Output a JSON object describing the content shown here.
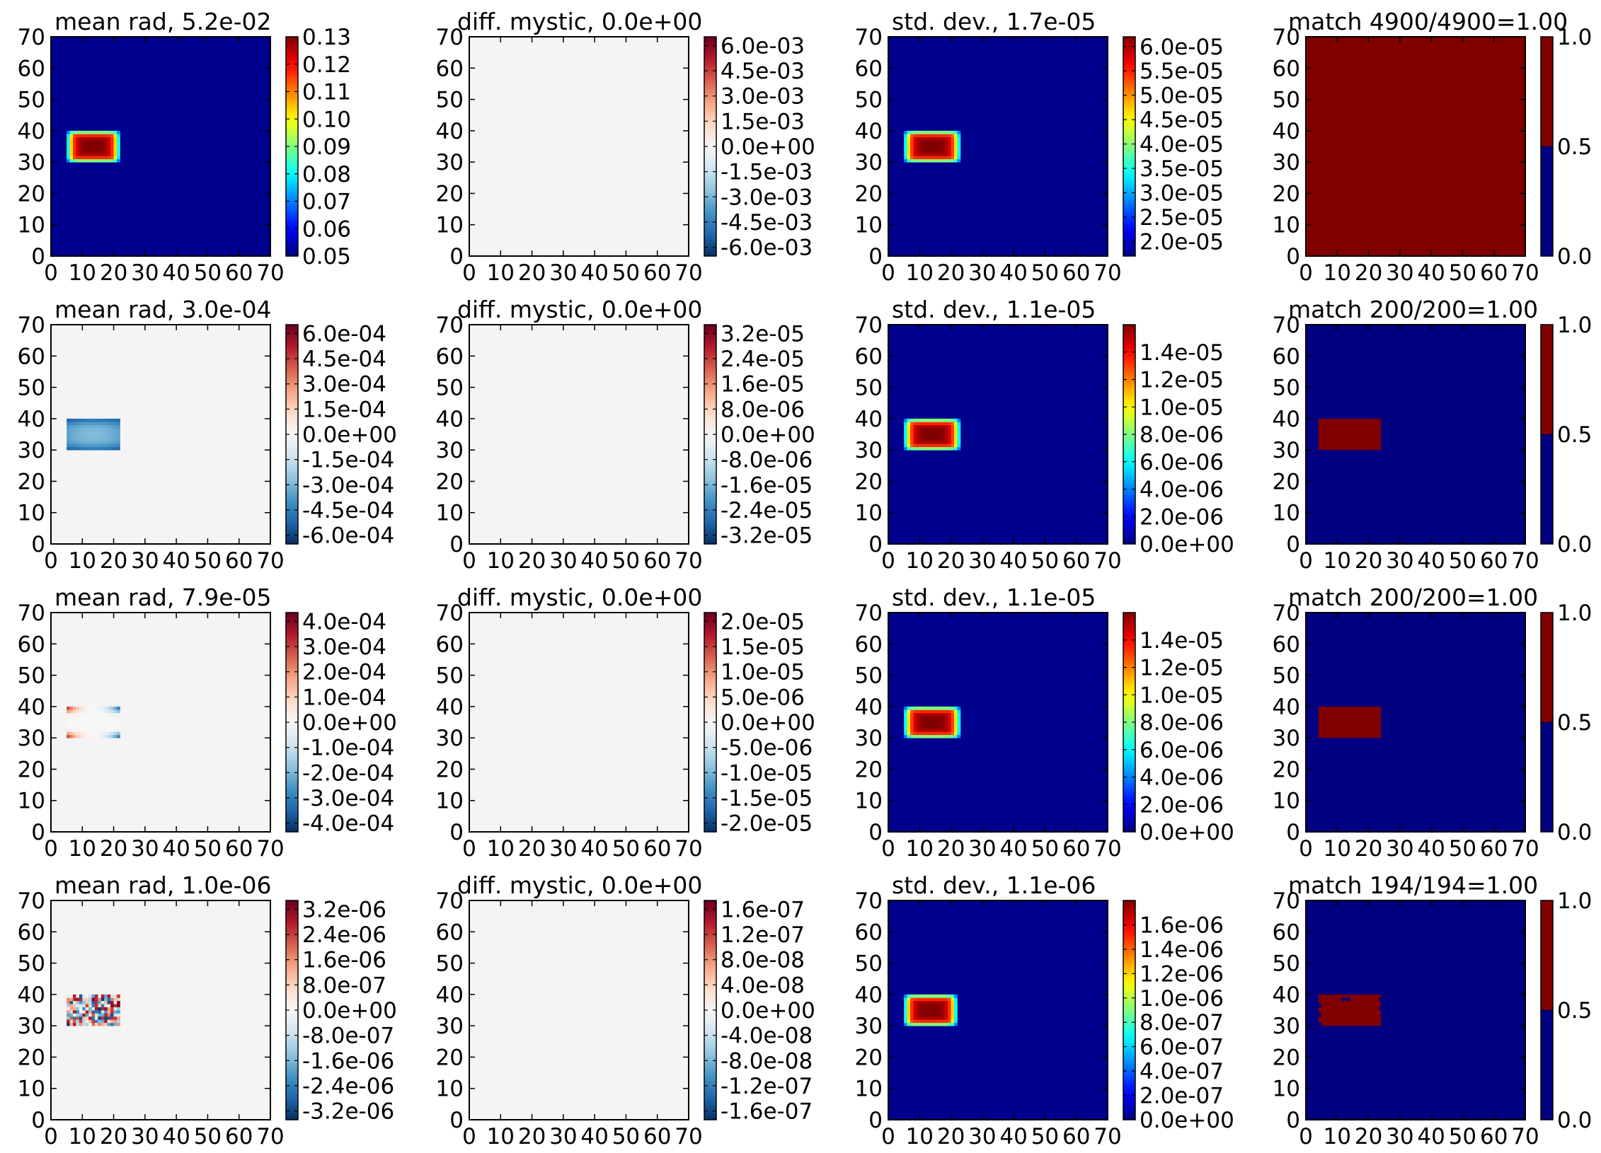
{
  "figure": {
    "grid": "4x4",
    "background": "#ffffff",
    "panel_background_uniform": "#f4f4f4",
    "jet_low_color": "#00008f",
    "match_true_color": "#800000",
    "match_false_color": "#000080"
  },
  "chart_data": [
    {
      "type": "heatmap",
      "title": "mean rad, 5.2e-02",
      "cmap": "jet",
      "xlim": [
        0,
        70
      ],
      "ylim": [
        0,
        70
      ],
      "xticks": [
        "0",
        "10",
        "20",
        "30",
        "40",
        "50",
        "60",
        "70"
      ],
      "yticks": [
        "0",
        "10",
        "20",
        "30",
        "40",
        "50",
        "60",
        "70"
      ],
      "colorbar": {
        "ticks": [
          "0.13",
          "0.12",
          "0.11",
          "0.10",
          "0.09",
          "0.08",
          "0.07",
          "0.06",
          "0.05"
        ],
        "vmin": 0.05,
        "vmax": 0.13
      },
      "field": {
        "kind": "hot_rect",
        "region_x": [
          5,
          22
        ],
        "region_y": [
          30,
          40
        ],
        "background": 0.05,
        "peak": 0.13
      }
    },
    {
      "type": "heatmap",
      "title": "diff. mystic, 0.0e+00",
      "cmap": "RdBu_r",
      "xlim": [
        0,
        70
      ],
      "ylim": [
        0,
        70
      ],
      "xticks": [
        "0",
        "10",
        "20",
        "30",
        "40",
        "50",
        "60",
        "70"
      ],
      "yticks": [
        "0",
        "10",
        "20",
        "30",
        "40",
        "50",
        "60",
        "70"
      ],
      "colorbar": {
        "ticks": [
          "6.0e-03",
          "4.5e-03",
          "3.0e-03",
          "1.5e-03",
          "0.0e+00",
          "-1.5e-03",
          "-3.0e-03",
          "-4.5e-03",
          "-6.0e-03"
        ]
      },
      "field": {
        "kind": "uniform"
      }
    },
    {
      "type": "heatmap",
      "title": "std. dev., 1.7e-05",
      "cmap": "jet",
      "xlim": [
        0,
        70
      ],
      "ylim": [
        0,
        70
      ],
      "xticks": [
        "0",
        "10",
        "20",
        "30",
        "40",
        "50",
        "60",
        "70"
      ],
      "yticks": [
        "0",
        "10",
        "20",
        "30",
        "40",
        "50",
        "60",
        "70"
      ],
      "colorbar": {
        "ticks": [
          "6.0e-05",
          "5.5e-05",
          "5.0e-05",
          "4.5e-05",
          "4.0e-05",
          "3.5e-05",
          "3.0e-05",
          "2.5e-05",
          "2.0e-05"
        ],
        "vmin": 1.7e-05,
        "vmax": 6.2e-05
      },
      "field": {
        "kind": "hot_rect",
        "region_x": [
          5,
          23
        ],
        "region_y": [
          30,
          40
        ]
      }
    },
    {
      "type": "heatmap",
      "title": "match 4900/4900=1.00",
      "cmap": "binary_jet",
      "xlim": [
        0,
        70
      ],
      "ylim": [
        0,
        70
      ],
      "xticks": [
        "0",
        "10",
        "20",
        "30",
        "40",
        "50",
        "60",
        "70"
      ],
      "yticks": [
        "0",
        "10",
        "20",
        "30",
        "40",
        "50",
        "60",
        "70"
      ],
      "colorbar": {
        "ticks": [
          "1.0",
          "0.5",
          "0.0"
        ]
      },
      "field": {
        "kind": "match_full"
      }
    },
    {
      "type": "heatmap",
      "title": "mean rad, 3.0e-04",
      "cmap": "RdBu_r",
      "xlim": [
        0,
        70
      ],
      "ylim": [
        0,
        70
      ],
      "xticks": [
        "0",
        "10",
        "20",
        "30",
        "40",
        "50",
        "60",
        "70"
      ],
      "yticks": [
        "0",
        "10",
        "20",
        "30",
        "40",
        "50",
        "60",
        "70"
      ],
      "colorbar": {
        "ticks": [
          "6.0e-04",
          "4.5e-04",
          "3.0e-04",
          "1.5e-04",
          "0.0e+00",
          "-1.5e-04",
          "-3.0e-04",
          "-4.5e-04",
          "-6.0e-04"
        ]
      },
      "field": {
        "kind": "blue_rect",
        "region_x": [
          5,
          22
        ],
        "region_y": [
          30,
          40
        ]
      }
    },
    {
      "type": "heatmap",
      "title": "diff. mystic, 0.0e+00",
      "cmap": "RdBu_r",
      "xlim": [
        0,
        70
      ],
      "ylim": [
        0,
        70
      ],
      "xticks": [
        "0",
        "10",
        "20",
        "30",
        "40",
        "50",
        "60",
        "70"
      ],
      "yticks": [
        "0",
        "10",
        "20",
        "30",
        "40",
        "50",
        "60",
        "70"
      ],
      "colorbar": {
        "ticks": [
          "3.2e-05",
          "2.4e-05",
          "1.6e-05",
          "8.0e-06",
          "0.0e+00",
          "-8.0e-06",
          "-1.6e-05",
          "-2.4e-05",
          "-3.2e-05"
        ]
      },
      "field": {
        "kind": "uniform"
      }
    },
    {
      "type": "heatmap",
      "title": "std. dev., 1.1e-05",
      "cmap": "jet",
      "xlim": [
        0,
        70
      ],
      "ylim": [
        0,
        70
      ],
      "xticks": [
        "0",
        "10",
        "20",
        "30",
        "40",
        "50",
        "60",
        "70"
      ],
      "yticks": [
        "0",
        "10",
        "20",
        "30",
        "40",
        "50",
        "60",
        "70"
      ],
      "colorbar": {
        "ticks": [
          "1.4e-05",
          "1.2e-05",
          "1.0e-05",
          "8.0e-06",
          "6.0e-06",
          "4.0e-06",
          "2.0e-06",
          "0.0e+00"
        ],
        "vmin": 0,
        "vmax": 1.6e-05
      },
      "field": {
        "kind": "hot_rect",
        "region_x": [
          5,
          23
        ],
        "region_y": [
          30,
          40
        ]
      }
    },
    {
      "type": "heatmap",
      "title": "match 200/200=1.00",
      "cmap": "binary_jet",
      "xlim": [
        0,
        70
      ],
      "ylim": [
        0,
        70
      ],
      "xticks": [
        "0",
        "10",
        "20",
        "30",
        "40",
        "50",
        "60",
        "70"
      ],
      "yticks": [
        "0",
        "10",
        "20",
        "30",
        "40",
        "50",
        "60",
        "70"
      ],
      "colorbar": {
        "ticks": [
          "1.0",
          "0.5",
          "0.0"
        ]
      },
      "field": {
        "kind": "match_rect",
        "region_x": [
          4,
          24
        ],
        "region_y": [
          30,
          40
        ]
      }
    },
    {
      "type": "heatmap",
      "title": "mean rad, 7.9e-05",
      "cmap": "RdBu_r",
      "xlim": [
        0,
        70
      ],
      "ylim": [
        0,
        70
      ],
      "xticks": [
        "0",
        "10",
        "20",
        "30",
        "40",
        "50",
        "60",
        "70"
      ],
      "yticks": [
        "0",
        "10",
        "20",
        "30",
        "40",
        "50",
        "60",
        "70"
      ],
      "colorbar": {
        "ticks": [
          "4.0e-04",
          "3.0e-04",
          "2.0e-04",
          "1.0e-04",
          "0.0e+00",
          "-1.0e-04",
          "-2.0e-04",
          "-3.0e-04",
          "-4.0e-04"
        ]
      },
      "field": {
        "kind": "x_pattern",
        "region_x": [
          5,
          22
        ],
        "region_y": [
          30,
          40
        ]
      }
    },
    {
      "type": "heatmap",
      "title": "diff. mystic, 0.0e+00",
      "cmap": "RdBu_r",
      "xlim": [
        0,
        70
      ],
      "ylim": [
        0,
        70
      ],
      "xticks": [
        "0",
        "10",
        "20",
        "30",
        "40",
        "50",
        "60",
        "70"
      ],
      "yticks": [
        "0",
        "10",
        "20",
        "30",
        "40",
        "50",
        "60",
        "70"
      ],
      "colorbar": {
        "ticks": [
          "2.0e-05",
          "1.5e-05",
          "1.0e-05",
          "5.0e-06",
          "0.0e+00",
          "-5.0e-06",
          "-1.0e-05",
          "-1.5e-05",
          "-2.0e-05"
        ]
      },
      "field": {
        "kind": "uniform"
      }
    },
    {
      "type": "heatmap",
      "title": "std. dev., 1.1e-05",
      "cmap": "jet",
      "xlim": [
        0,
        70
      ],
      "ylim": [
        0,
        70
      ],
      "xticks": [
        "0",
        "10",
        "20",
        "30",
        "40",
        "50",
        "60",
        "70"
      ],
      "yticks": [
        "0",
        "10",
        "20",
        "30",
        "40",
        "50",
        "60",
        "70"
      ],
      "colorbar": {
        "ticks": [
          "1.4e-05",
          "1.2e-05",
          "1.0e-05",
          "8.0e-06",
          "6.0e-06",
          "4.0e-06",
          "2.0e-06",
          "0.0e+00"
        ],
        "vmin": 0,
        "vmax": 1.6e-05
      },
      "field": {
        "kind": "hot_rect",
        "region_x": [
          5,
          23
        ],
        "region_y": [
          30,
          40
        ]
      }
    },
    {
      "type": "heatmap",
      "title": "match 200/200=1.00",
      "cmap": "binary_jet",
      "xlim": [
        0,
        70
      ],
      "ylim": [
        0,
        70
      ],
      "xticks": [
        "0",
        "10",
        "20",
        "30",
        "40",
        "50",
        "60",
        "70"
      ],
      "yticks": [
        "0",
        "10",
        "20",
        "30",
        "40",
        "50",
        "60",
        "70"
      ],
      "colorbar": {
        "ticks": [
          "1.0",
          "0.5",
          "0.0"
        ]
      },
      "field": {
        "kind": "match_rect",
        "region_x": [
          4,
          24
        ],
        "region_y": [
          30,
          40
        ]
      }
    },
    {
      "type": "heatmap",
      "title": "mean rad, 1.0e-06",
      "cmap": "RdBu_r",
      "xlim": [
        0,
        70
      ],
      "ylim": [
        0,
        70
      ],
      "xticks": [
        "0",
        "10",
        "20",
        "30",
        "40",
        "50",
        "60",
        "70"
      ],
      "yticks": [
        "0",
        "10",
        "20",
        "30",
        "40",
        "50",
        "60",
        "70"
      ],
      "colorbar": {
        "ticks": [
          "3.2e-06",
          "2.4e-06",
          "1.6e-06",
          "8.0e-07",
          "0.0e+00",
          "-8.0e-07",
          "-1.6e-06",
          "-2.4e-06",
          "-3.2e-06"
        ]
      },
      "field": {
        "kind": "noise_rect",
        "region_x": [
          5,
          22
        ],
        "region_y": [
          30,
          40
        ]
      }
    },
    {
      "type": "heatmap",
      "title": "diff. mystic, 0.0e+00",
      "cmap": "RdBu_r",
      "xlim": [
        0,
        70
      ],
      "ylim": [
        0,
        70
      ],
      "xticks": [
        "0",
        "10",
        "20",
        "30",
        "40",
        "50",
        "60",
        "70"
      ],
      "yticks": [
        "0",
        "10",
        "20",
        "30",
        "40",
        "50",
        "60",
        "70"
      ],
      "colorbar": {
        "ticks": [
          "1.6e-07",
          "1.2e-07",
          "8.0e-08",
          "4.0e-08",
          "0.0e+00",
          "-4.0e-08",
          "-8.0e-08",
          "-1.2e-07",
          "-1.6e-07"
        ]
      },
      "field": {
        "kind": "uniform"
      }
    },
    {
      "type": "heatmap",
      "title": "std. dev., 1.1e-06",
      "cmap": "jet",
      "xlim": [
        0,
        70
      ],
      "ylim": [
        0,
        70
      ],
      "xticks": [
        "0",
        "10",
        "20",
        "30",
        "40",
        "50",
        "60",
        "70"
      ],
      "yticks": [
        "0",
        "10",
        "20",
        "30",
        "40",
        "50",
        "60",
        "70"
      ],
      "colorbar": {
        "ticks": [
          "1.6e-06",
          "1.4e-06",
          "1.2e-06",
          "1.0e-06",
          "8.0e-07",
          "6.0e-07",
          "4.0e-07",
          "2.0e-07",
          "0.0e+00"
        ],
        "vmin": 0,
        "vmax": 1.8e-06
      },
      "field": {
        "kind": "hot_rect",
        "region_x": [
          5,
          22
        ],
        "region_y": [
          30,
          40
        ]
      }
    },
    {
      "type": "heatmap",
      "title": "match 194/194=1.00",
      "cmap": "binary_jet",
      "xlim": [
        0,
        70
      ],
      "ylim": [
        0,
        70
      ],
      "xticks": [
        "0",
        "10",
        "20",
        "30",
        "40",
        "50",
        "60",
        "70"
      ],
      "yticks": [
        "0",
        "10",
        "20",
        "30",
        "40",
        "50",
        "60",
        "70"
      ],
      "colorbar": {
        "ticks": [
          "1.0",
          "0.5",
          "0.0"
        ]
      },
      "field": {
        "kind": "match_rect_holes",
        "region_x": [
          4,
          24
        ],
        "region_y": [
          30,
          40
        ]
      }
    }
  ]
}
